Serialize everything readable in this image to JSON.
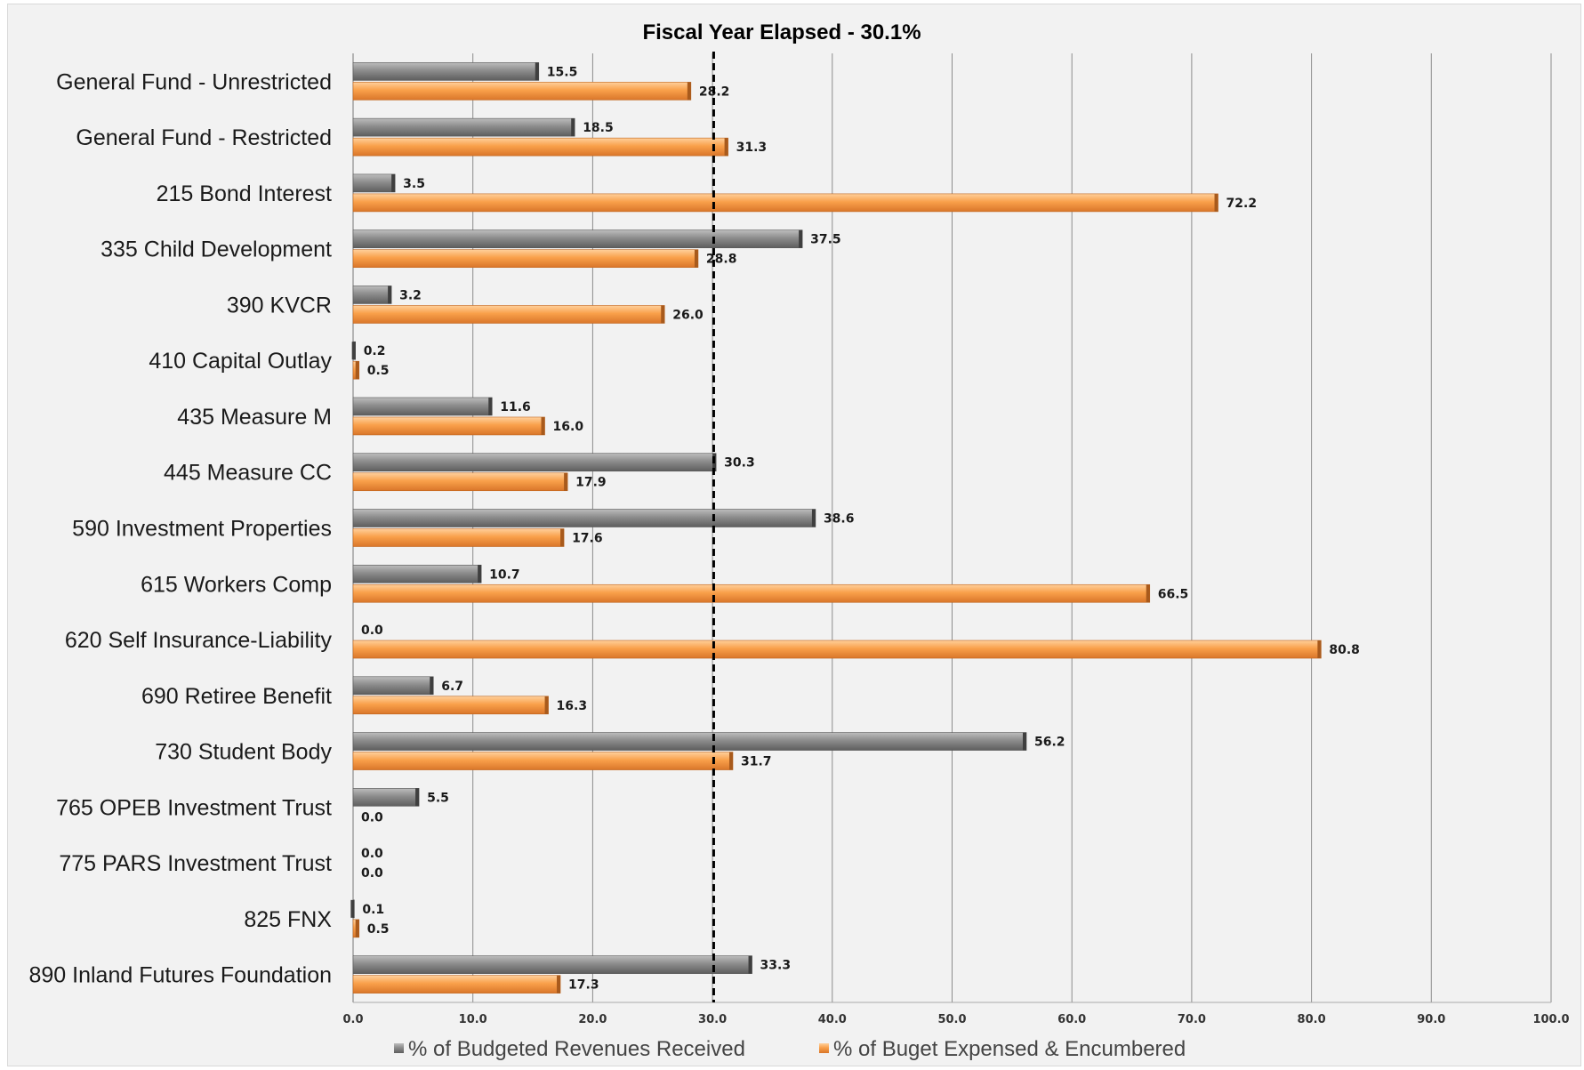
{
  "chart_data": {
    "type": "bar",
    "orientation": "horizontal",
    "title": "Fiscal Year Elapsed - 30.1%",
    "reference_line": 30.1,
    "xlim": [
      0,
      100
    ],
    "x_ticks": [
      "0.0",
      "10.0",
      "20.0",
      "30.0",
      "40.0",
      "50.0",
      "60.0",
      "70.0",
      "80.0",
      "90.0",
      "100.0"
    ],
    "grid": true,
    "legend_position": "bottom",
    "categories": [
      "General Fund - Unrestricted",
      "General Fund - Restricted",
      "215 Bond Interest",
      "335 Child Development",
      "390 KVCR",
      "410 Capital Outlay",
      "435 Measure M",
      "445 Measure CC",
      "590 Investment Properties",
      "615 Workers Comp",
      "620 Self Insurance-Liability",
      "690 Retiree Benefit",
      "730 Student Body",
      "765 OPEB Investment Trust",
      "775 PARS Investment Trust",
      "825 FNX",
      "890 Inland Futures Foundation"
    ],
    "series": [
      {
        "name": "% of Budgeted Revenues Received",
        "color": "#7f7f7f",
        "values": [
          15.5,
          18.5,
          3.5,
          37.5,
          3.2,
          0.2,
          11.6,
          30.3,
          38.6,
          10.7,
          0.0,
          6.7,
          56.2,
          5.5,
          0.0,
          0.1,
          33.3
        ],
        "labels": [
          "15.5",
          "18.5",
          "3.5",
          "37.5",
          "3.2",
          "0.2",
          "11.6",
          "30.3",
          "38.6",
          "10.7",
          "0.0",
          "6.7",
          "56.2",
          "5.5",
          "0.0",
          "0.1",
          "33.3"
        ]
      },
      {
        "name": "% of Buget Expensed & Encumbered",
        "color": "#f79646",
        "values": [
          28.2,
          31.3,
          72.2,
          28.8,
          26.0,
          0.5,
          16.0,
          17.9,
          17.6,
          66.5,
          80.8,
          16.3,
          31.7,
          0.0,
          0.0,
          0.5,
          17.3
        ],
        "labels": [
          "28.2",
          "31.3",
          "72.2",
          "28.8",
          "26.0",
          "0.5",
          "16.0",
          "17.9",
          "17.6",
          "66.5",
          "80.8",
          "16.3",
          "31.7",
          "0.0",
          "0.0",
          "0.5",
          "17.3"
        ]
      }
    ]
  }
}
